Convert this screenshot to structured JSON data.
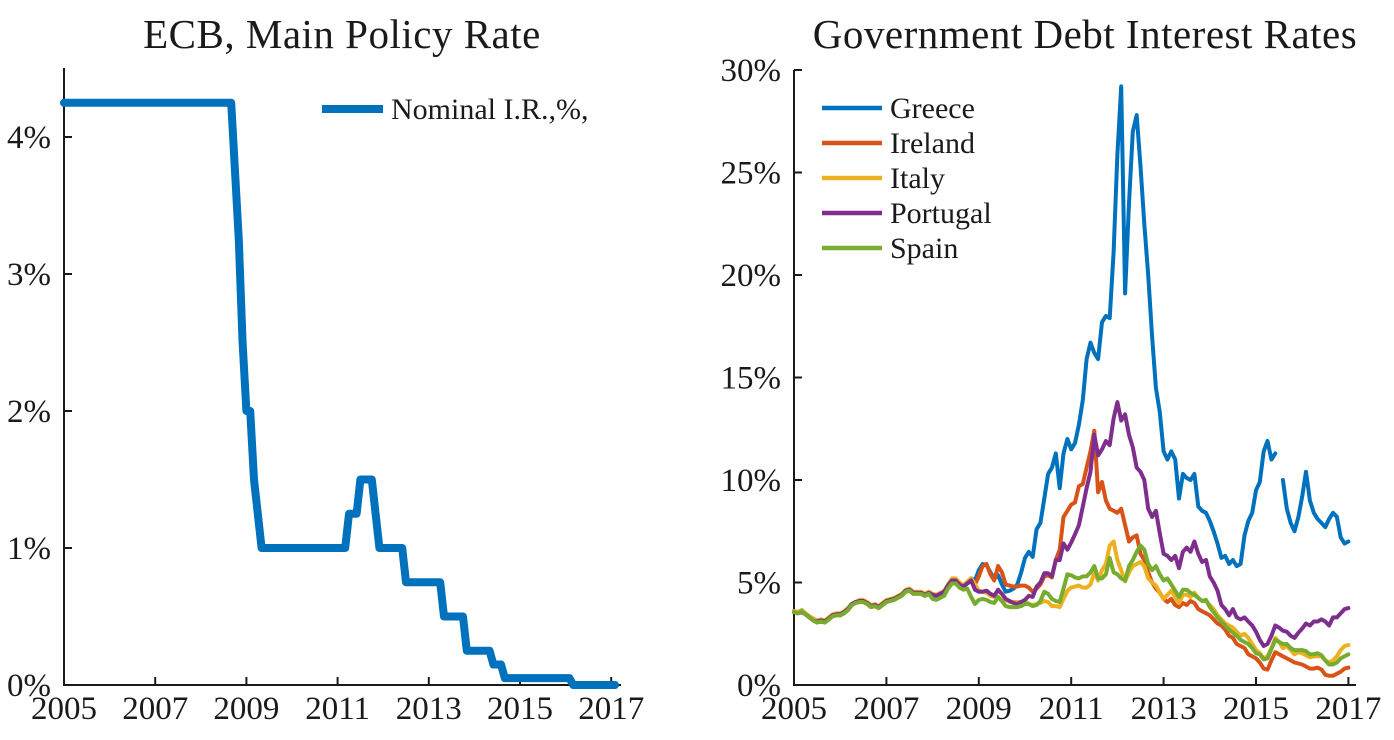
{
  "figure": {
    "background": "#ffffff",
    "axis_color": "#1a1a1a"
  },
  "palette": {
    "blue": "#0072BD",
    "orange": "#D95319",
    "yellow": "#EDB120",
    "purple": "#7E2F8E",
    "green": "#77AC30"
  },
  "chart_data": [
    {
      "type": "line",
      "title": "ECB, Main Policy Rate",
      "xlabel": "",
      "ylabel": "",
      "xlim": [
        2005,
        2017.3
      ],
      "ylim": [
        0,
        4.5
      ],
      "grid": false,
      "legend_position": "upper right inside, no box",
      "x_ticks": [
        2005,
        2007,
        2009,
        2011,
        2013,
        2015,
        2017
      ],
      "x_tick_labels": [
        "2005",
        "2007",
        "2009",
        "2011",
        "2013",
        "2015",
        "2017"
      ],
      "y_ticks": [
        0,
        1,
        2,
        3,
        4
      ],
      "y_tick_labels": [
        "0%",
        "1%",
        "2%",
        "3%",
        "4%"
      ],
      "series": [
        {
          "name": "Nominal I.R.,%,",
          "color": "#0072BD",
          "x_start": 2005.0,
          "x_step_months": 1,
          "values": [
            4.25,
            4.25,
            4.25,
            4.25,
            4.25,
            4.25,
            4.25,
            4.25,
            4.25,
            4.25,
            4.25,
            4.25,
            4.25,
            4.25,
            4.25,
            4.25,
            4.25,
            4.25,
            4.25,
            4.25,
            4.25,
            4.25,
            4.25,
            4.25,
            4.25,
            4.25,
            4.25,
            4.25,
            4.25,
            4.25,
            4.25,
            4.25,
            4.25,
            4.25,
            4.25,
            4.25,
            4.25,
            4.25,
            4.25,
            4.25,
            4.25,
            4.25,
            4.25,
            4.25,
            4.25,
            3.75,
            3.25,
            2.5,
            2,
            2,
            1.5,
            1.25,
            1,
            1,
            1,
            1,
            1,
            1,
            1,
            1,
            1,
            1,
            1,
            1,
            1,
            1,
            1,
            1,
            1,
            1,
            1,
            1,
            1,
            1,
            1,
            1.25,
            1.25,
            1.25,
            1.5,
            1.5,
            1.5,
            1.5,
            1.25,
            1,
            1,
            1,
            1,
            1,
            1,
            1,
            0.75,
            0.75,
            0.75,
            0.75,
            0.75,
            0.75,
            0.75,
            0.75,
            0.75,
            0.75,
            0.5,
            0.5,
            0.5,
            0.5,
            0.5,
            0.5,
            0.25,
            0.25,
            0.25,
            0.25,
            0.25,
            0.25,
            0.25,
            0.15,
            0.15,
            0.15,
            0.05,
            0.05,
            0.05,
            0.05,
            0.05,
            0.05,
            0.05,
            0.05,
            0.05,
            0.05,
            0.05,
            0.05,
            0.05,
            0.05,
            0.05,
            0.05,
            0.05,
            0.05,
            0,
            0,
            0,
            0,
            0,
            0,
            0,
            0,
            0,
            0,
            0,
            0
          ]
        }
      ]
    },
    {
      "type": "line",
      "title": "Government Debt Interest Rates",
      "xlabel": "",
      "ylabel": "",
      "xlim": [
        2005,
        2017.2
      ],
      "ylim": [
        0,
        30
      ],
      "grid": false,
      "legend_position": "upper left inside, no box",
      "x_ticks": [
        2005,
        2007,
        2009,
        2011,
        2013,
        2015,
        2017
      ],
      "x_tick_labels": [
        "2005",
        "2007",
        "2009",
        "2011",
        "2013",
        "2015",
        "2017"
      ],
      "y_ticks": [
        0,
        5,
        10,
        15,
        20,
        25,
        30
      ],
      "y_tick_labels": [
        "0%",
        "5%",
        "10%",
        "15%",
        "20%",
        "25%",
        "30%"
      ],
      "series": [
        {
          "name": "Greece",
          "color": "#0072BD",
          "x_start": 2005.0,
          "x_step_months": 1,
          "values": [
            3.6,
            3.55,
            3.65,
            3.5,
            3.35,
            3.2,
            3.1,
            3.15,
            3.1,
            3.25,
            3.4,
            3.45,
            3.45,
            3.55,
            3.7,
            3.95,
            4.05,
            4.1,
            4.1,
            4.0,
            3.85,
            3.9,
            3.8,
            3.95,
            4.1,
            4.15,
            4.2,
            4.3,
            4.4,
            4.6,
            4.65,
            4.5,
            4.5,
            4.5,
            4.4,
            4.5,
            4.4,
            4.35,
            4.45,
            4.55,
            4.9,
            5.15,
            5.15,
            4.95,
            4.8,
            5.0,
            5.2,
            5.1,
            5.6,
            5.9,
            5.85,
            5.5,
            5.2,
            5.35,
            4.9,
            4.55,
            4.6,
            4.7,
            4.9,
            5.5,
            6.2,
            6.5,
            6.25,
            7.6,
            7.9,
            9.1,
            10.3,
            10.6,
            11.3,
            9.6,
            11.3,
            12.0,
            11.5,
            11.8,
            12.7,
            13.9,
            15.9,
            16.7,
            16.2,
            15.9,
            17.7,
            18.0,
            17.9,
            21.1,
            25.9,
            29.2,
            19.1,
            23.5,
            27.0,
            27.8,
            25.3,
            22.5,
            20.0,
            17.0,
            14.5,
            13.3,
            11.4,
            11.0,
            11.4,
            11.0,
            9.1,
            10.3,
            10.1,
            10.0,
            10.3,
            8.7,
            8.5,
            8.4,
            8.0,
            7.5,
            6.9,
            6.2,
            6.3,
            5.9,
            6.1,
            5.8,
            5.9,
            7.3,
            8.0,
            8.4,
            9.5,
            9.9,
            11.4,
            11.9,
            11.0,
            11.3,
            null,
            10.0,
            8.6,
            7.9,
            7.5,
            8.2,
            9.2,
            10.4,
            9.0,
            8.4,
            8.1,
            7.9,
            7.7,
            8.1,
            8.4,
            8.2,
            7.2,
            6.9,
            7.0
          ]
        },
        {
          "name": "Ireland",
          "color": "#D95319",
          "x_start": 2005.0,
          "x_step_months": 1,
          "values": [
            3.6,
            3.55,
            3.6,
            3.45,
            3.3,
            3.15,
            3.05,
            3.1,
            3.05,
            3.2,
            3.35,
            3.4,
            3.4,
            3.5,
            3.65,
            3.9,
            4.0,
            4.05,
            4.05,
            3.95,
            3.8,
            3.85,
            3.75,
            3.9,
            4.05,
            4.1,
            4.15,
            4.25,
            4.35,
            4.55,
            4.6,
            4.45,
            4.45,
            4.45,
            4.35,
            4.45,
            4.35,
            4.3,
            4.4,
            4.5,
            4.85,
            5.1,
            5.1,
            4.9,
            4.8,
            5.0,
            5.2,
            4.9,
            5.3,
            5.8,
            5.9,
            5.4,
            5.1,
            5.8,
            5.5,
            4.9,
            4.85,
            4.8,
            4.8,
            4.85,
            4.85,
            4.75,
            4.55,
            4.7,
            4.9,
            5.3,
            5.35,
            5.25,
            6.1,
            6.6,
            8.2,
            8.5,
            8.8,
            8.9,
            9.7,
            9.8,
            10.6,
            11.4,
            12.4,
            9.4,
            9.9,
            9.0,
            8.6,
            8.5,
            8.4,
            8.6,
            7.8,
            7.0,
            7.2,
            7.3,
            6.4,
            6.1,
            5.5,
            5.0,
            4.7,
            4.5,
            4.2,
            4.05,
            4.2,
            3.9,
            3.8,
            4.0,
            3.9,
            4.1,
            4.0,
            3.7,
            3.6,
            3.5,
            3.4,
            3.2,
            3.0,
            2.9,
            2.7,
            2.4,
            2.3,
            2.0,
            1.9,
            1.8,
            1.5,
            1.4,
            1.3,
            1.1,
            0.8,
            0.75,
            1.2,
            1.6,
            1.5,
            1.4,
            1.3,
            1.2,
            1.1,
            1.05,
            1.0,
            0.9,
            0.8,
            0.8,
            0.85,
            0.75,
            0.5,
            0.45,
            0.45,
            0.55,
            0.65,
            0.8,
            0.85
          ]
        },
        {
          "name": "Italy",
          "color": "#EDB120",
          "x_start": 2005.0,
          "x_step_months": 1,
          "values": [
            3.6,
            3.55,
            3.65,
            3.5,
            3.35,
            3.25,
            3.15,
            3.2,
            3.15,
            3.3,
            3.45,
            3.5,
            3.5,
            3.6,
            3.75,
            3.95,
            4.05,
            4.15,
            4.15,
            4.05,
            3.9,
            3.95,
            3.85,
            4.0,
            4.15,
            4.2,
            4.25,
            4.35,
            4.45,
            4.65,
            4.7,
            4.55,
            4.55,
            4.55,
            4.45,
            4.55,
            4.45,
            4.4,
            4.5,
            4.6,
            4.9,
            5.2,
            5.2,
            5.0,
            4.85,
            5.05,
            5.2,
            4.9,
            4.6,
            4.55,
            4.5,
            4.35,
            4.3,
            4.6,
            4.45,
            4.15,
            4.05,
            4.05,
            4.05,
            4.05,
            4.1,
            3.95,
            3.9,
            3.95,
            4.0,
            4.1,
            4.05,
            3.85,
            3.85,
            3.8,
            4.2,
            4.6,
            4.75,
            4.8,
            4.85,
            4.75,
            4.75,
            4.9,
            5.5,
            5.1,
            5.6,
            5.9,
            6.8,
            7.0,
            6.1,
            5.6,
            5.05,
            5.5,
            5.8,
            5.9,
            6.0,
            5.8,
            5.2,
            5.0,
            4.85,
            4.5,
            4.2,
            4.4,
            4.6,
            4.3,
            4.0,
            4.4,
            4.4,
            4.3,
            4.5,
            4.25,
            4.1,
            4.1,
            3.9,
            3.7,
            3.4,
            3.2,
            3.0,
            2.9,
            2.8,
            2.6,
            2.4,
            2.5,
            2.3,
            2.0,
            1.7,
            1.55,
            1.3,
            1.4,
            1.8,
            2.3,
            2.1,
            1.8,
            1.9,
            1.7,
            1.5,
            1.6,
            1.55,
            1.45,
            1.35,
            1.4,
            1.4,
            1.4,
            1.2,
            1.1,
            1.2,
            1.4,
            1.7,
            1.9,
            1.95
          ]
        },
        {
          "name": "Portugal",
          "color": "#7E2F8E",
          "x_start": 2005.0,
          "x_step_months": 1,
          "values": [
            3.55,
            3.5,
            3.55,
            3.45,
            3.3,
            3.15,
            3.1,
            3.15,
            3.1,
            3.25,
            3.4,
            3.45,
            3.45,
            3.55,
            3.7,
            3.95,
            4.05,
            4.1,
            4.1,
            4.0,
            3.85,
            3.9,
            3.8,
            3.95,
            4.1,
            4.15,
            4.2,
            4.3,
            4.4,
            4.6,
            4.65,
            4.5,
            4.5,
            4.5,
            4.4,
            4.5,
            4.4,
            4.35,
            4.45,
            4.55,
            4.85,
            5.1,
            5.1,
            4.9,
            4.8,
            4.95,
            5.1,
            4.65,
            4.55,
            4.55,
            4.6,
            4.45,
            4.35,
            4.65,
            4.45,
            4.2,
            4.1,
            4.0,
            3.95,
            4.05,
            4.15,
            4.35,
            4.3,
            4.8,
            5.0,
            5.45,
            5.45,
            5.3,
            6.1,
            6.1,
            6.9,
            6.6,
            6.95,
            7.35,
            7.8,
            8.7,
            9.6,
            10.4,
            12.2,
            11.2,
            11.5,
            11.9,
            11.7,
            13.0,
            13.8,
            12.9,
            13.2,
            12.2,
            11.6,
            10.6,
            10.4,
            10.0,
            8.6,
            8.2,
            8.5,
            7.4,
            6.4,
            6.3,
            6.1,
            6.3,
            5.7,
            6.5,
            6.7,
            6.5,
            7.0,
            6.4,
            6.0,
            6.1,
            5.3,
            5.0,
            4.6,
            3.9,
            3.7,
            3.4,
            3.7,
            3.3,
            3.2,
            3.3,
            3.1,
            2.9,
            2.6,
            2.2,
            1.9,
            2.0,
            2.4,
            2.9,
            2.8,
            2.65,
            2.6,
            2.4,
            2.3,
            2.55,
            2.75,
            3.0,
            2.9,
            3.1,
            3.1,
            3.2,
            3.1,
            2.9,
            3.3,
            3.3,
            3.5,
            3.7,
            3.75
          ]
        },
        {
          "name": "Spain",
          "color": "#77AC30",
          "x_start": 2005.0,
          "x_step_months": 1,
          "values": [
            3.55,
            3.5,
            3.6,
            3.45,
            3.3,
            3.15,
            3.05,
            3.1,
            3.05,
            3.2,
            3.35,
            3.4,
            3.4,
            3.5,
            3.65,
            3.9,
            4.0,
            4.05,
            4.05,
            3.95,
            3.8,
            3.85,
            3.75,
            3.9,
            4.05,
            4.1,
            4.15,
            4.25,
            4.35,
            4.55,
            4.6,
            4.45,
            4.45,
            4.45,
            4.35,
            4.45,
            4.2,
            4.15,
            4.25,
            4.35,
            4.7,
            4.95,
            4.95,
            4.75,
            4.65,
            4.7,
            4.3,
            3.95,
            4.15,
            4.2,
            4.15,
            4.05,
            4.0,
            4.3,
            4.1,
            3.85,
            3.8,
            3.8,
            3.8,
            3.85,
            3.95,
            3.95,
            3.85,
            3.9,
            4.1,
            4.55,
            4.45,
            4.2,
            4.1,
            4.05,
            4.7,
            5.4,
            5.35,
            5.25,
            5.2,
            5.3,
            5.3,
            5.5,
            5.8,
            5.2,
            5.2,
            5.4,
            6.2,
            5.5,
            5.4,
            5.2,
            5.1,
            5.8,
            6.1,
            6.5,
            6.8,
            6.6,
            5.9,
            5.6,
            5.8,
            5.4,
            5.1,
            5.2,
            4.9,
            4.6,
            4.3,
            4.65,
            4.65,
            4.5,
            4.4,
            4.25,
            4.1,
            4.15,
            3.8,
            3.55,
            3.3,
            3.1,
            2.9,
            2.7,
            2.55,
            2.4,
            2.2,
            2.1,
            2.0,
            1.8,
            1.55,
            1.5,
            1.25,
            1.3,
            1.75,
            2.2,
            2.1,
            2.0,
            2.0,
            1.8,
            1.7,
            1.7,
            1.7,
            1.65,
            1.5,
            1.5,
            1.55,
            1.45,
            1.2,
            1.0,
            1.0,
            1.1,
            1.3,
            1.4,
            1.5
          ]
        }
      ]
    }
  ]
}
